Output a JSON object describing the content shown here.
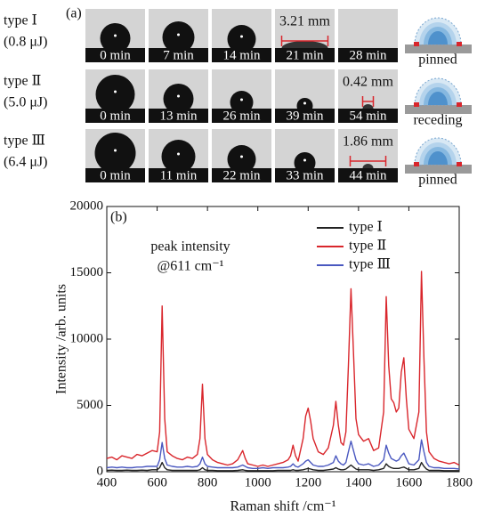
{
  "panel_a": {
    "label": "(a)",
    "rows": [
      {
        "type": "type Ⅰ",
        "energy": "(0.8 μJ)",
        "times": [
          "0 min",
          "7 min",
          "14 min",
          "21 min",
          "28 min"
        ],
        "measurement": "3.21 mm",
        "state": "pinned"
      },
      {
        "type": "type Ⅱ",
        "energy": "(5.0 μJ)",
        "times": [
          "0 min",
          "13 min",
          "26 min",
          "39 min",
          "54 min"
        ],
        "measurement": "0.42 mm",
        "state": "receding"
      },
      {
        "type": "type Ⅲ",
        "energy": "(6.4 μJ)",
        "times": [
          "0 min",
          "11 min",
          "22 min",
          "33 min",
          "44 min"
        ],
        "measurement": "1.86 mm",
        "state": "pinned"
      }
    ]
  },
  "chart_data": {
    "type": "line",
    "panel_label": "(b)",
    "annotation": [
      "peak intensity",
      "@611 cm⁻¹"
    ],
    "xlabel": "Raman shift /cm⁻¹",
    "ylabel": "Intensity /arb. units",
    "xlim": [
      400,
      1800
    ],
    "ylim": [
      0,
      20000
    ],
    "xticks": [
      400,
      600,
      800,
      1000,
      1200,
      1400,
      1600,
      1800
    ],
    "yticks": [
      0,
      5000,
      10000,
      15000,
      20000
    ],
    "legend": "upper right",
    "x": [
      400,
      420,
      440,
      460,
      480,
      500,
      520,
      540,
      560,
      580,
      600,
      610,
      620,
      630,
      640,
      660,
      680,
      700,
      720,
      740,
      760,
      770,
      780,
      790,
      800,
      820,
      840,
      860,
      880,
      900,
      920,
      940,
      950,
      960,
      980,
      1000,
      1020,
      1040,
      1060,
      1080,
      1100,
      1120,
      1130,
      1140,
      1150,
      1160,
      1180,
      1190,
      1200,
      1210,
      1220,
      1240,
      1260,
      1280,
      1300,
      1310,
      1320,
      1330,
      1340,
      1350,
      1360,
      1370,
      1380,
      1390,
      1400,
      1420,
      1440,
      1460,
      1480,
      1500,
      1510,
      1520,
      1530,
      1540,
      1550,
      1560,
      1570,
      1580,
      1590,
      1600,
      1620,
      1640,
      1650,
      1660,
      1670,
      1680,
      1700,
      1720,
      1740,
      1760,
      1780,
      1800
    ],
    "series": [
      {
        "name": "type Ⅰ",
        "color": "#222222",
        "values": [
          100,
          120,
          100,
          100,
          120,
          100,
          100,
          120,
          100,
          150,
          150,
          300,
          700,
          300,
          150,
          100,
          100,
          100,
          100,
          100,
          100,
          150,
          300,
          150,
          100,
          100,
          80,
          80,
          80,
          80,
          100,
          150,
          100,
          80,
          80,
          80,
          80,
          80,
          80,
          100,
          100,
          100,
          100,
          150,
          100,
          100,
          150,
          200,
          250,
          200,
          150,
          100,
          100,
          150,
          200,
          300,
          200,
          150,
          150,
          200,
          350,
          500,
          350,
          200,
          150,
          150,
          150,
          100,
          150,
          250,
          600,
          400,
          300,
          250,
          250,
          250,
          300,
          350,
          250,
          150,
          150,
          250,
          700,
          400,
          200,
          100,
          100,
          100,
          80,
          80,
          80,
          80
        ]
      },
      {
        "name": "type Ⅱ",
        "color": "#d9262c",
        "values": [
          1000,
          1100,
          900,
          1200,
          1100,
          1000,
          1300,
          1200,
          1400,
          1600,
          1500,
          3000,
          12500,
          4000,
          1500,
          1200,
          1000,
          900,
          1100,
          1000,
          1300,
          2500,
          6600,
          2500,
          1300,
          900,
          700,
          600,
          500,
          600,
          900,
          1600,
          1000,
          600,
          500,
          400,
          500,
          400,
          500,
          600,
          700,
          900,
          1200,
          2000,
          1200,
          800,
          2500,
          4200,
          4800,
          3800,
          2500,
          1500,
          1300,
          1800,
          3500,
          5300,
          3500,
          2200,
          2000,
          3000,
          8000,
          13800,
          9000,
          4000,
          2800,
          2300,
          2500,
          1600,
          1800,
          4500,
          13200,
          8000,
          5500,
          5200,
          4500,
          4800,
          7500,
          8600,
          5500,
          3200,
          2500,
          4500,
          15100,
          8500,
          3000,
          1500,
          1000,
          800,
          700,
          600,
          700,
          500
        ]
      },
      {
        "name": "type Ⅲ",
        "color": "#4a58c0",
        "values": [
          300,
          350,
          300,
          350,
          300,
          300,
          350,
          350,
          400,
          400,
          400,
          900,
          2200,
          1000,
          500,
          400,
          350,
          350,
          400,
          350,
          400,
          600,
          1100,
          600,
          400,
          350,
          300,
          300,
          300,
          300,
          350,
          500,
          400,
          300,
          250,
          250,
          300,
          250,
          300,
          300,
          300,
          350,
          400,
          600,
          400,
          350,
          600,
          800,
          900,
          700,
          500,
          400,
          400,
          500,
          700,
          1200,
          800,
          600,
          500,
          700,
          1500,
          2300,
          1600,
          900,
          600,
          500,
          600,
          400,
          500,
          900,
          2000,
          1400,
          1000,
          900,
          800,
          900,
          1200,
          1400,
          1000,
          600,
          500,
          900,
          2400,
          1500,
          700,
          400,
          300,
          300,
          250,
          250,
          250,
          200
        ]
      }
    ]
  }
}
